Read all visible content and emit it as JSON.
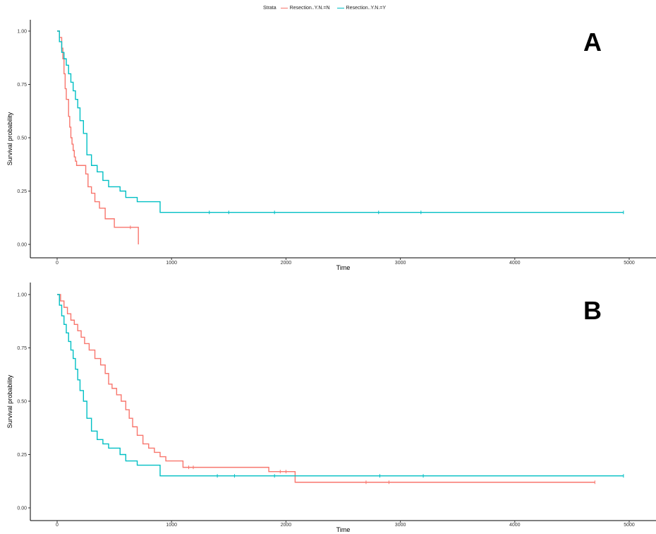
{
  "legend": {
    "title": "Strata",
    "items": [
      {
        "label": "Resection..Y.N.=N",
        "color": "#F8766D"
      },
      {
        "label": "Resection..Y.N.=Y",
        "color": "#00BFC4"
      }
    ]
  },
  "chart_data": [
    {
      "type": "line",
      "step": true,
      "panel_label": "A",
      "xlabel": "Time",
      "ylabel": "Survival probability",
      "xlim": [
        0,
        5000
      ],
      "ylim": [
        0,
        1
      ],
      "xticks": [
        0,
        1000,
        2000,
        3000,
        4000,
        5000
      ],
      "xtick_labels": [
        "0",
        "1000",
        "2000",
        "3000",
        "4000",
        "5000"
      ],
      "yticks": [
        0,
        0.25,
        0.5,
        0.75,
        1
      ],
      "ytick_labels": [
        "0.00",
        "0.25",
        "0.50",
        "0.75",
        "1.00"
      ],
      "grid": false,
      "series": [
        {
          "name": "Resection..Y.N.=N",
          "color": "#F8766D",
          "x": [
            0,
            20,
            40,
            50,
            60,
            70,
            80,
            100,
            110,
            120,
            130,
            140,
            150,
            160,
            170,
            180,
            200,
            250,
            270,
            300,
            330,
            370,
            420,
            500,
            600,
            710
          ],
          "y": [
            1.0,
            0.97,
            0.92,
            0.87,
            0.8,
            0.73,
            0.68,
            0.6,
            0.55,
            0.5,
            0.47,
            0.44,
            0.41,
            0.39,
            0.37,
            0.37,
            0.37,
            0.33,
            0.27,
            0.24,
            0.2,
            0.17,
            0.12,
            0.08,
            0.08,
            0.0
          ],
          "censored": [
            {
              "x": 640,
              "y": 0.08
            }
          ]
        },
        {
          "name": "Resection..Y.N.=Y",
          "color": "#00BFC4",
          "x": [
            0,
            20,
            40,
            60,
            80,
            100,
            120,
            140,
            160,
            180,
            200,
            230,
            260,
            300,
            350,
            400,
            450,
            550,
            600,
            700,
            900,
            4950
          ],
          "y": [
            1.0,
            0.95,
            0.9,
            0.87,
            0.84,
            0.8,
            0.76,
            0.72,
            0.68,
            0.64,
            0.58,
            0.52,
            0.42,
            0.37,
            0.34,
            0.3,
            0.27,
            0.25,
            0.22,
            0.2,
            0.15,
            0.15
          ],
          "censored": [
            {
              "x": 1330,
              "y": 0.15
            },
            {
              "x": 1500,
              "y": 0.15
            },
            {
              "x": 1900,
              "y": 0.15
            },
            {
              "x": 2810,
              "y": 0.15
            },
            {
              "x": 3180,
              "y": 0.15
            },
            {
              "x": 4950,
              "y": 0.15
            }
          ]
        }
      ]
    },
    {
      "type": "line",
      "step": true,
      "panel_label": "B",
      "xlabel": "Time",
      "ylabel": "Survival probability",
      "xlim": [
        0,
        5000
      ],
      "ylim": [
        0,
        1
      ],
      "xticks": [
        0,
        1000,
        2000,
        3000,
        4000,
        5000
      ],
      "xtick_labels": [
        "0",
        "1000",
        "2000",
        "3000",
        "4000",
        "5000"
      ],
      "yticks": [
        0,
        0.25,
        0.5,
        0.75,
        1
      ],
      "ytick_labels": [
        "0.00",
        "0.25",
        "0.50",
        "0.75",
        "1.00"
      ],
      "grid": false,
      "series": [
        {
          "name": "Resection..Y.N.=N",
          "color": "#F8766D",
          "x": [
            0,
            30,
            60,
            90,
            120,
            150,
            180,
            210,
            240,
            280,
            330,
            380,
            420,
            450,
            480,
            520,
            560,
            600,
            630,
            660,
            700,
            750,
            800,
            850,
            900,
            950,
            1100,
            1850,
            2080,
            4700
          ],
          "y": [
            1.0,
            0.97,
            0.94,
            0.91,
            0.88,
            0.86,
            0.83,
            0.8,
            0.77,
            0.74,
            0.7,
            0.67,
            0.63,
            0.58,
            0.56,
            0.53,
            0.5,
            0.46,
            0.42,
            0.38,
            0.34,
            0.3,
            0.28,
            0.26,
            0.24,
            0.22,
            0.19,
            0.17,
            0.12,
            0.12
          ],
          "censored": [
            {
              "x": 1150,
              "y": 0.19
            },
            {
              "x": 1190,
              "y": 0.19
            },
            {
              "x": 1950,
              "y": 0.17
            },
            {
              "x": 2000,
              "y": 0.17
            },
            {
              "x": 2700,
              "y": 0.12
            },
            {
              "x": 2900,
              "y": 0.12
            },
            {
              "x": 4700,
              "y": 0.12
            }
          ]
        },
        {
          "name": "Resection..Y.N.=Y",
          "color": "#00BFC4",
          "x": [
            0,
            20,
            40,
            60,
            80,
            100,
            120,
            140,
            160,
            180,
            200,
            230,
            260,
            300,
            350,
            400,
            450,
            550,
            600,
            700,
            900,
            4950
          ],
          "y": [
            1.0,
            0.95,
            0.9,
            0.86,
            0.82,
            0.78,
            0.74,
            0.7,
            0.65,
            0.6,
            0.55,
            0.5,
            0.42,
            0.36,
            0.32,
            0.3,
            0.28,
            0.25,
            0.22,
            0.2,
            0.15,
            0.15
          ],
          "censored": [
            {
              "x": 1400,
              "y": 0.15
            },
            {
              "x": 1550,
              "y": 0.15
            },
            {
              "x": 1900,
              "y": 0.15
            },
            {
              "x": 2820,
              "y": 0.15
            },
            {
              "x": 3200,
              "y": 0.15
            },
            {
              "x": 4950,
              "y": 0.15
            }
          ]
        }
      ]
    }
  ]
}
